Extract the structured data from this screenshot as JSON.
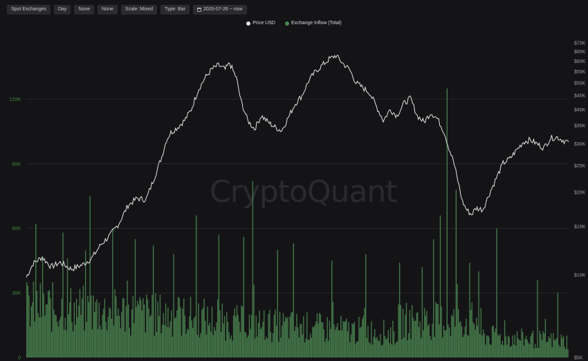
{
  "toolbar": {
    "exchange": "Spot Exchanges",
    "interval": "Day",
    "smoothing1": "None",
    "smoothing2": "None",
    "scale": "Scale: Mixed",
    "type": "Type: Bar",
    "range": "2020-07-26 ~ now"
  },
  "watermark": "CryptoQuant",
  "colors": {
    "price": "#e6e6e6",
    "inflow": "#4e8a52",
    "background": "#141416",
    "grid": "#26262a"
  },
  "chart_data": {
    "type": "line+bar",
    "x_start": "2020-07-26",
    "x_end": "2021-07-06",
    "series": [
      {
        "name": "Price USD",
        "type": "line",
        "axis": "right",
        "scale": "log",
        "points": [
          [
            0,
            9800
          ],
          [
            6,
            11000
          ],
          [
            14,
            11600
          ],
          [
            22,
            10700
          ],
          [
            30,
            11100
          ],
          [
            40,
            10500
          ],
          [
            50,
            10900
          ],
          [
            58,
            11500
          ],
          [
            66,
            12900
          ],
          [
            74,
            13900
          ],
          [
            82,
            15400
          ],
          [
            90,
            17900
          ],
          [
            98,
            19000
          ],
          [
            106,
            18800
          ],
          [
            114,
            23000
          ],
          [
            120,
            27000
          ],
          [
            124,
            31000
          ],
          [
            128,
            33000
          ],
          [
            134,
            34500
          ],
          [
            140,
            36500
          ],
          [
            146,
            40000
          ],
          [
            152,
            47000
          ],
          [
            158,
            52000
          ],
          [
            164,
            56000
          ],
          [
            170,
            58000
          ],
          [
            176,
            56000
          ],
          [
            180,
            59000
          ],
          [
            186,
            52000
          ],
          [
            190,
            43000
          ],
          [
            196,
            36500
          ],
          [
            202,
            34000
          ],
          [
            208,
            38000
          ],
          [
            214,
            36000
          ],
          [
            220,
            34500
          ],
          [
            226,
            33500
          ],
          [
            232,
            37500
          ],
          [
            238,
            42000
          ],
          [
            244,
            45000
          ],
          [
            250,
            51000
          ],
          [
            256,
            55000
          ],
          [
            262,
            58000
          ],
          [
            268,
            61000
          ],
          [
            274,
            63000
          ],
          [
            280,
            59000
          ],
          [
            286,
            56000
          ],
          [
            292,
            50000
          ],
          [
            298,
            48000
          ],
          [
            304,
            46000
          ],
          [
            310,
            41000
          ],
          [
            316,
            36500
          ],
          [
            322,
            40000
          ],
          [
            328,
            38000
          ],
          [
            334,
            42000
          ],
          [
            340,
            44000
          ],
          [
            346,
            38000
          ],
          [
            352,
            36000
          ],
          [
            358,
            39000
          ],
          [
            364,
            37000
          ],
          [
            370,
            33000
          ],
          [
            374,
            29000
          ],
          [
            378,
            26000
          ],
          [
            382,
            22000
          ],
          [
            386,
            18500
          ],
          [
            390,
            17200
          ],
          [
            394,
            16600
          ],
          [
            398,
            17500
          ],
          [
            404,
            17300
          ],
          [
            410,
            19800
          ],
          [
            416,
            22500
          ],
          [
            422,
            25500
          ],
          [
            428,
            26500
          ],
          [
            434,
            28500
          ],
          [
            440,
            30500
          ],
          [
            446,
            31000
          ],
          [
            452,
            30000
          ],
          [
            458,
            29000
          ],
          [
            464,
            31500
          ],
          [
            470,
            31700
          ],
          [
            476,
            30800
          ],
          [
            480,
            30500
          ]
        ]
      },
      {
        "name": "Exchange Inflow (Total)",
        "type": "bar",
        "axis": "left"
      }
    ],
    "left_axis": {
      "ticks": [
        "0",
        "30K",
        "60K",
        "90K",
        "120K"
      ],
      "range": [
        0,
        150000
      ]
    },
    "right_axis": {
      "ticks": [
        "$5K",
        "$10K",
        "$15K",
        "$20K",
        "$25K",
        "$30K",
        "$35K",
        "$40K",
        "$45K",
        "$50K",
        "$55K",
        "$60K",
        "$65K",
        "$70K"
      ],
      "range": [
        5000,
        75000
      ]
    },
    "grid": true,
    "legend": "top-center"
  }
}
